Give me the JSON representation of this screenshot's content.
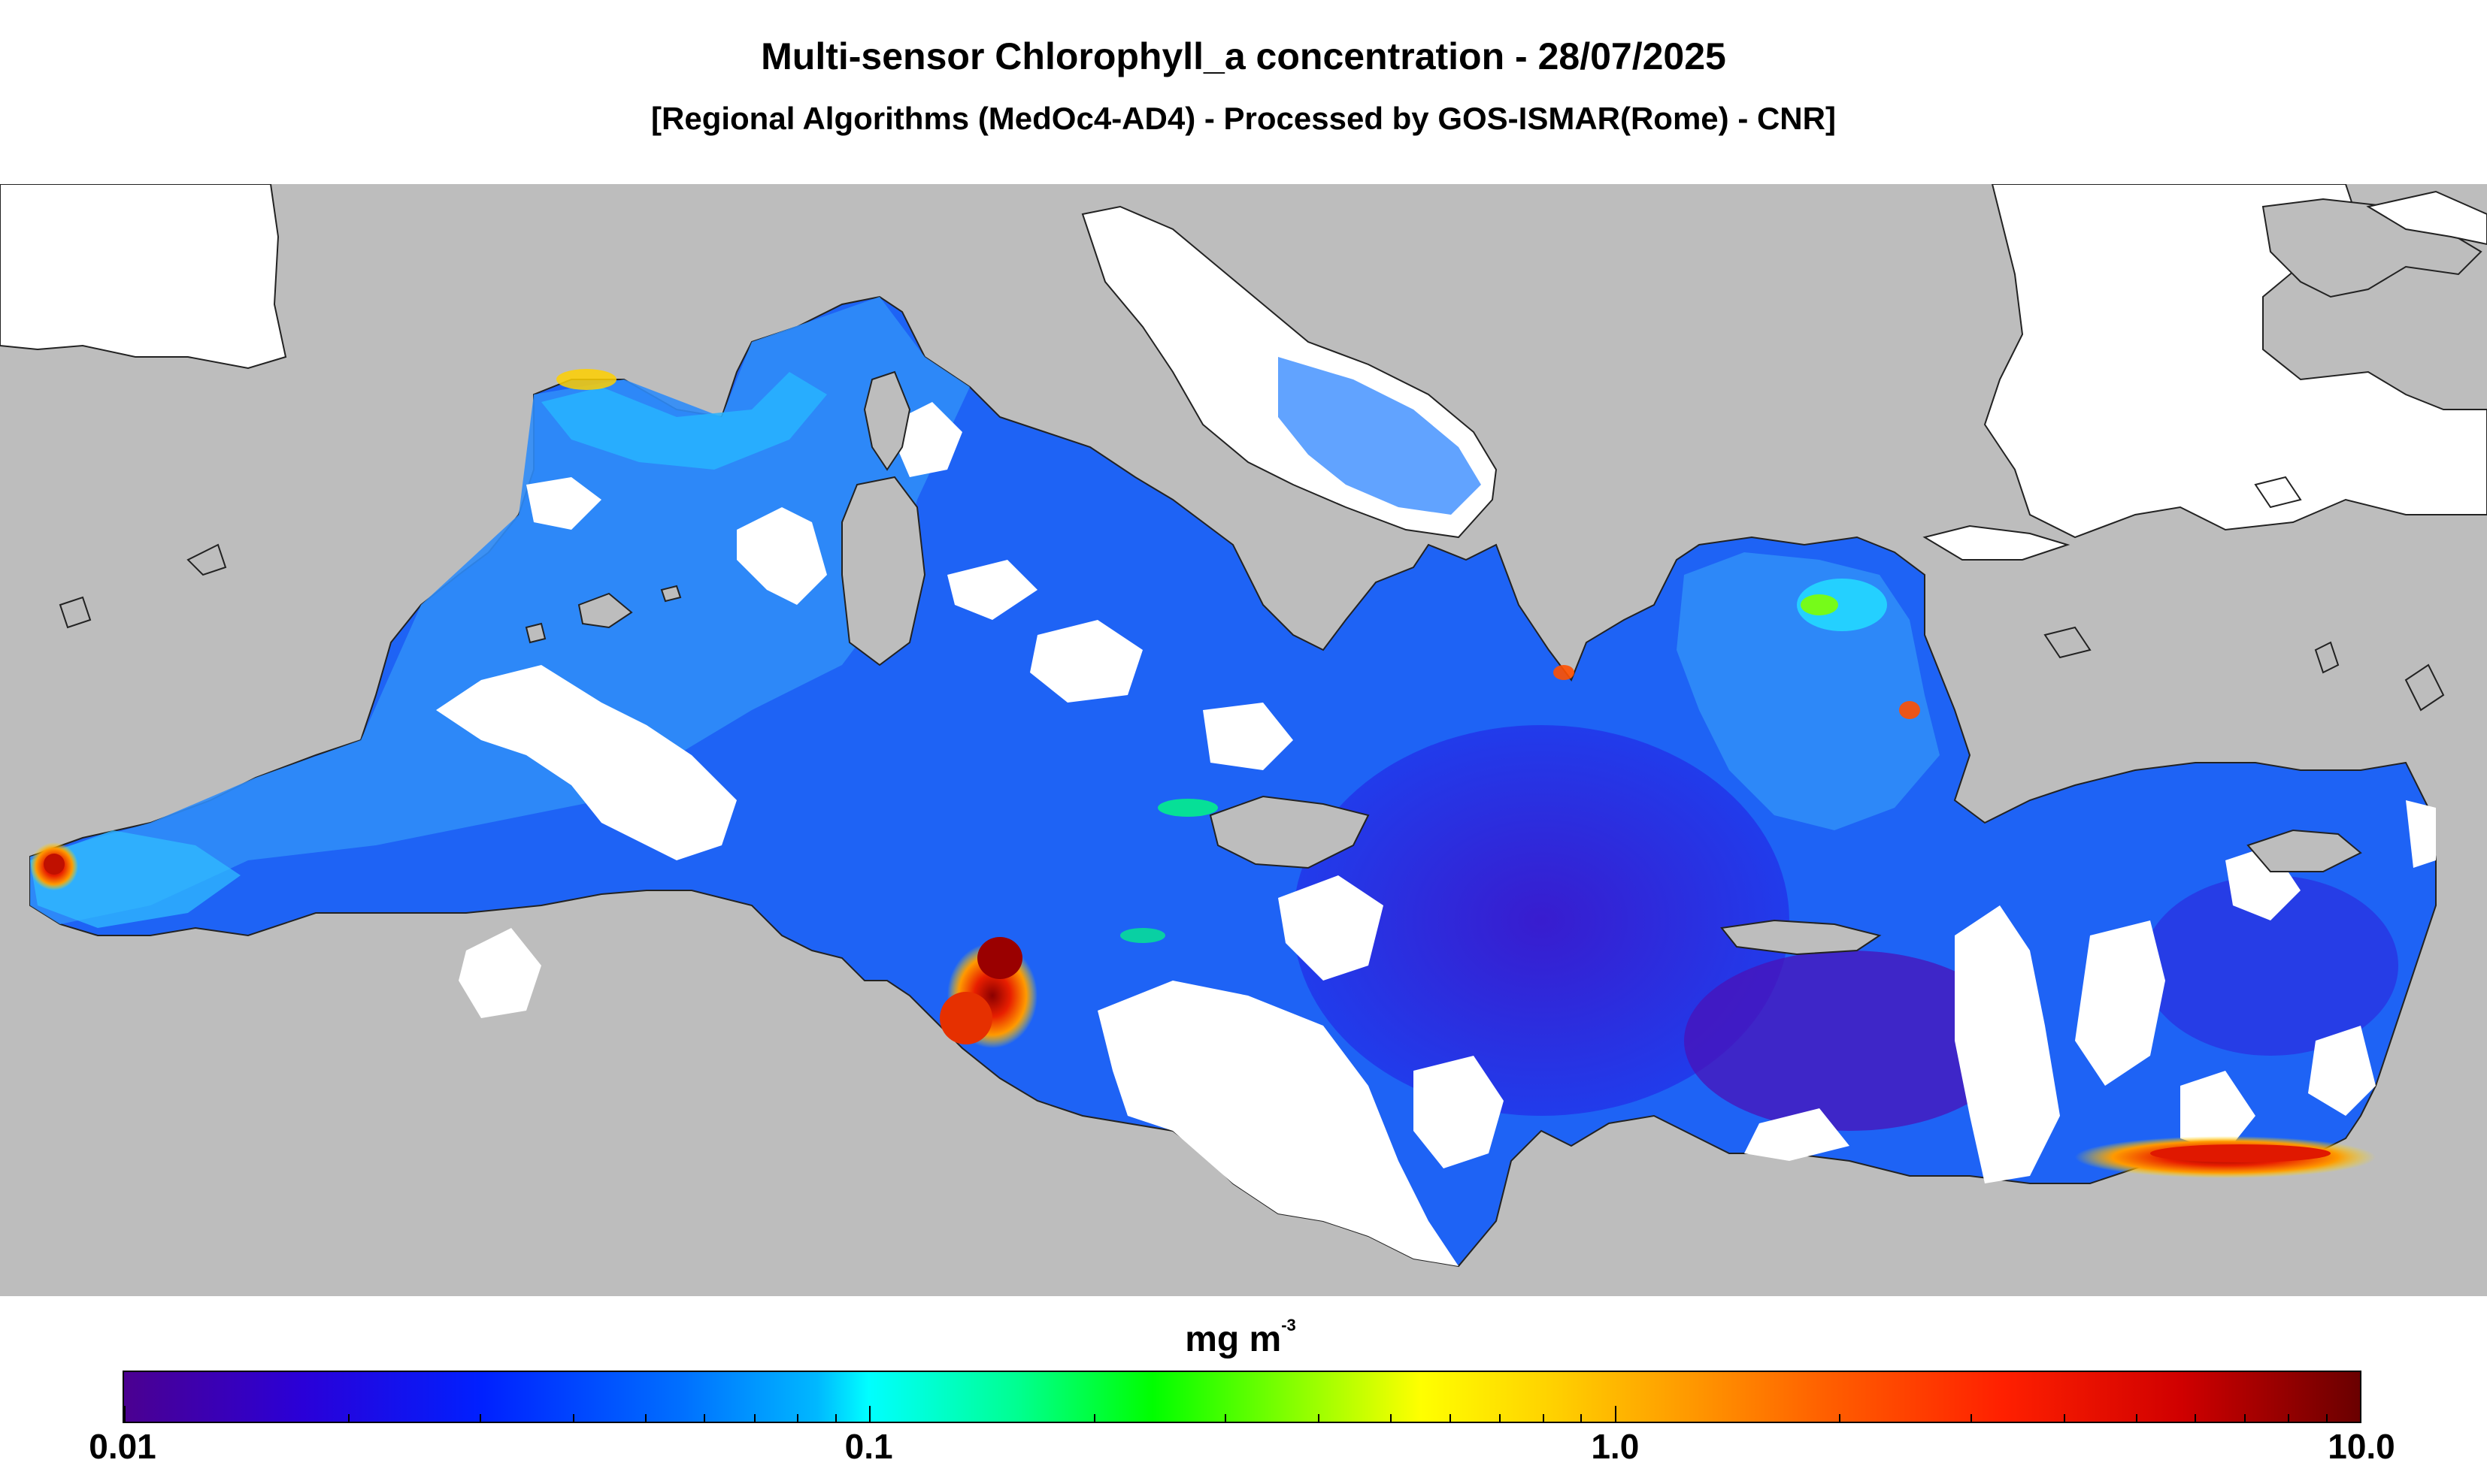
{
  "title": "Multi-sensor Chlorophyll_a concentration - 28/07/2025",
  "subtitle": "[Regional Algorithms (MedOc4-AD4) - Processed by GOS-ISMAR(Rome) - CNR]",
  "colorbar": {
    "unit_base": "mg m",
    "unit_exp": "-3",
    "scale": "log",
    "min": 0.01,
    "max": 10.0,
    "labels": [
      "0.01",
      "0.1",
      "1.0",
      "10.0"
    ],
    "colors": [
      "#4b0090",
      "#0020ff",
      "#00ffff",
      "#00ff00",
      "#ffff00",
      "#ff9900",
      "#ff2000",
      "#6a0000"
    ]
  },
  "map": {
    "region": "Mediterranean Sea",
    "colors": {
      "land": "#bdbdbd",
      "no_data": "#ffffff",
      "coastline": "#222222"
    }
  }
}
